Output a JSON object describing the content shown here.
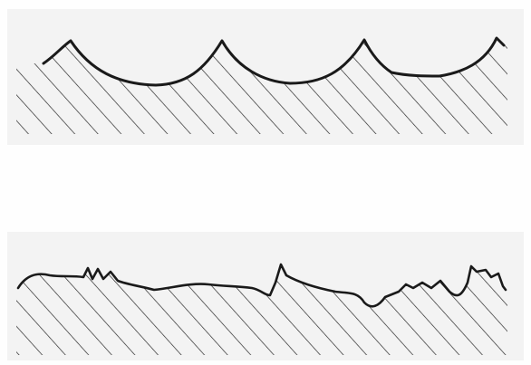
{
  "figure": {
    "panels": [
      {
        "profile": "scalloped-periodic-surface"
      },
      {
        "profile": "irregular-rough-surface"
      }
    ],
    "colors": {
      "background": "#ffffff",
      "band": "#f3f3f3",
      "ink": "#1a1a1a",
      "hatch": "#2a2a2a"
    }
  }
}
